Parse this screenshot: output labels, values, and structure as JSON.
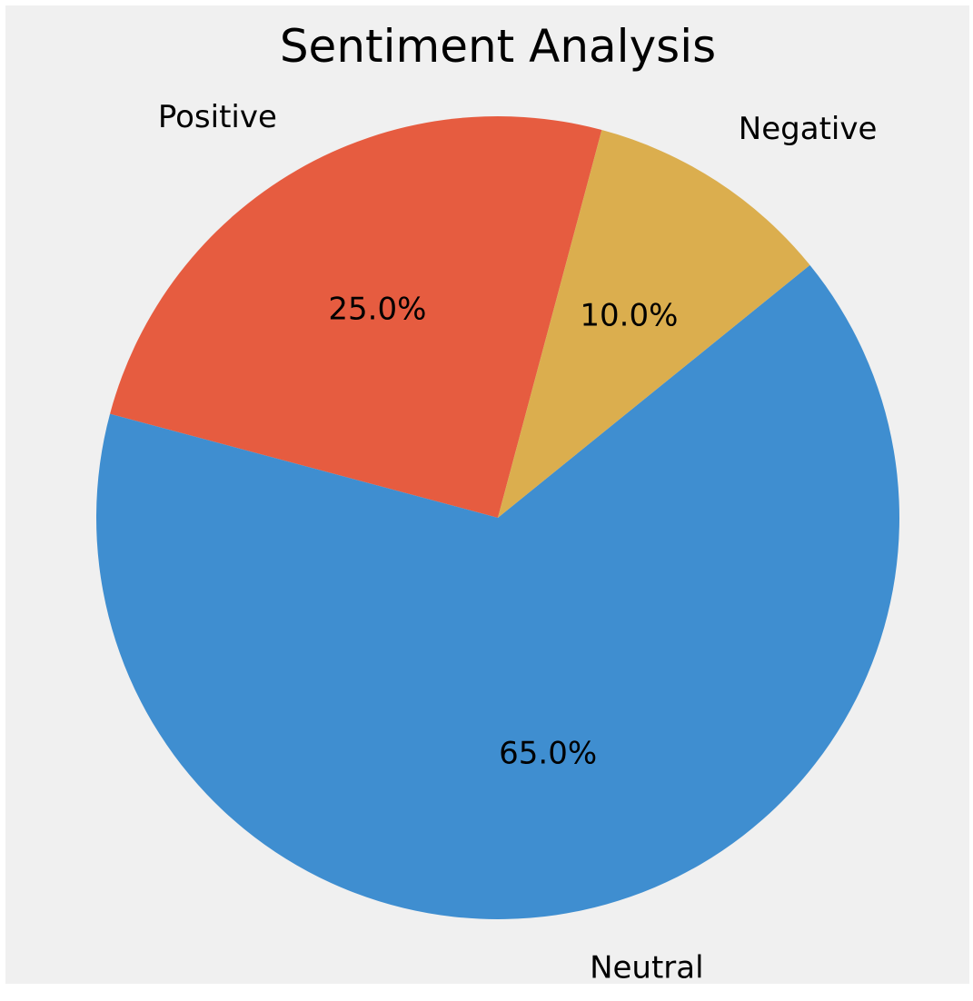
{
  "chart_data": {
    "type": "pie",
    "title": "Sentiment Analysis",
    "slices": [
      {
        "label": "Positive",
        "value": 25.0,
        "pct_label": "25.0%",
        "color": "#E65C40"
      },
      {
        "label": "Neutral",
        "value": 65.0,
        "pct_label": "65.0%",
        "color": "#3F8ED0"
      },
      {
        "label": "Negative",
        "value": 10.0,
        "pct_label": "10.0%",
        "color": "#DBAE4E"
      }
    ],
    "start_angle_deg": 75,
    "direction": "counterclockwise",
    "background_color": "#F0F0F0",
    "legend": "none"
  }
}
